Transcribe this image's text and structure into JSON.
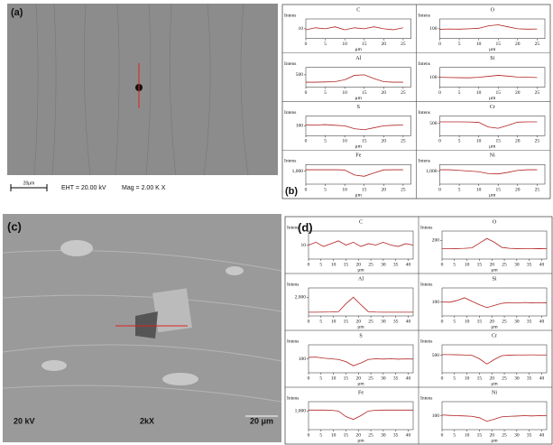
{
  "panels": {
    "a": {
      "label": "(a)",
      "eht": "EHT = 20.00 kV",
      "mag": "Mag =  2.00 K X",
      "scale": "20μm"
    },
    "b": {
      "label": "(b)"
    },
    "c": {
      "label": "(c)",
      "voltage": "20 kV",
      "mag": "2kX",
      "scale": "20 μm"
    },
    "d": {
      "label": "(d)"
    }
  },
  "chart_data": [
    {
      "type": "line",
      "title": "C",
      "y_label": "Intens",
      "x_label": "μm",
      "x": [
        0,
        2.5,
        5,
        7.5,
        10,
        12.5,
        15,
        17.5,
        20,
        22.5,
        25
      ],
      "values": [
        9,
        11,
        10,
        12,
        9,
        11,
        10,
        12,
        10,
        9,
        11
      ],
      "color": "#b22222",
      "xlim": [
        0,
        27
      ],
      "xticks": [
        0,
        5,
        10,
        15,
        20,
        25
      ],
      "ylim": [
        0,
        20
      ],
      "yticks": [
        10
      ]
    },
    {
      "type": "line",
      "title": "O",
      "y_label": "Intens",
      "x_label": "μm",
      "x": [
        0,
        2.5,
        5,
        7.5,
        10,
        12.5,
        15,
        17.5,
        20,
        22.5,
        25
      ],
      "values": [
        95,
        98,
        96,
        100,
        105,
        130,
        140,
        120,
        100,
        96,
        98
      ],
      "color": "#b22222",
      "xlim": [
        0,
        27
      ],
      "xticks": [
        0,
        5,
        10,
        15,
        20,
        25
      ],
      "ylim": [
        0,
        200
      ],
      "yticks": [
        100
      ]
    },
    {
      "type": "line",
      "title": "Al",
      "y_label": "Intens",
      "x_label": "μm",
      "x": [
        0,
        2.5,
        5,
        7.5,
        10,
        12.5,
        15,
        17.5,
        20,
        22.5,
        25
      ],
      "values": [
        200,
        200,
        210,
        220,
        300,
        480,
        500,
        350,
        220,
        200,
        200
      ],
      "color": "#b22222",
      "xlim": [
        0,
        27
      ],
      "xticks": [
        0,
        5,
        10,
        15,
        20,
        25
      ],
      "ylim": [
        0,
        800
      ],
      "yticks": [
        500
      ]
    },
    {
      "type": "line",
      "title": "Si",
      "y_label": "Intens",
      "x_label": "μm",
      "x": [
        0,
        2.5,
        5,
        7.5,
        10,
        12.5,
        15,
        17.5,
        20,
        22.5,
        25
      ],
      "values": [
        100,
        98,
        96,
        95,
        100,
        110,
        120,
        112,
        102,
        100,
        98
      ],
      "color": "#b22222",
      "xlim": [
        0,
        27
      ],
      "xticks": [
        0,
        5,
        10,
        15,
        20,
        25
      ],
      "ylim": [
        0,
        200
      ],
      "yticks": [
        100
      ]
    },
    {
      "type": "line",
      "title": "S",
      "y_label": "Intens",
      "x_label": "μm",
      "x": [
        0,
        2.5,
        5,
        7.5,
        10,
        12.5,
        15,
        17.5,
        20,
        22.5,
        25
      ],
      "values": [
        110,
        108,
        112,
        105,
        100,
        70,
        60,
        80,
        100,
        105,
        108
      ],
      "color": "#b22222",
      "xlim": [
        0,
        27
      ],
      "xticks": [
        0,
        5,
        10,
        15,
        20,
        25
      ],
      "ylim": [
        0,
        200
      ],
      "yticks": [
        100
      ]
    },
    {
      "type": "line",
      "title": "Cr",
      "y_label": "Intens",
      "x_label": "μm",
      "x": [
        0,
        2.5,
        5,
        7.5,
        10,
        12.5,
        15,
        17.5,
        20,
        22.5,
        25
      ],
      "values": [
        560,
        560,
        560,
        555,
        540,
        350,
        300,
        420,
        550,
        560,
        560
      ],
      "color": "#b22222",
      "xlim": [
        0,
        27
      ],
      "xticks": [
        0,
        5,
        10,
        15,
        20,
        25
      ],
      "ylim": [
        0,
        800
      ],
      "yticks": [
        500
      ]
    },
    {
      "type": "line",
      "title": "Fe",
      "y_label": "Intens",
      "x_label": "μm",
      "x": [
        0,
        2.5,
        5,
        7.5,
        10,
        12.5,
        15,
        17.5,
        20,
        22.5,
        25
      ],
      "values": [
        1100,
        1100,
        1100,
        1100,
        1080,
        700,
        600,
        850,
        1090,
        1100,
        1100
      ],
      "color": "#b22222",
      "xlim": [
        0,
        27
      ],
      "xticks": [
        0,
        5,
        10,
        15,
        20,
        25
      ],
      "ylim": [
        0,
        1500
      ],
      "yticks": [
        {
          "value": 1000,
          "label": "1,000"
        }
      ]
    },
    {
      "type": "line",
      "title": "Ni",
      "y_label": "Intens",
      "x_label": "μm",
      "x": [
        0,
        2.5,
        5,
        7.5,
        10,
        12.5,
        15,
        17.5,
        20,
        22.5,
        25
      ],
      "values": [
        1100,
        1100,
        1050,
        1000,
        950,
        800,
        780,
        900,
        1050,
        1100,
        1100
      ],
      "color": "#b22222",
      "xlim": [
        0,
        27
      ],
      "xticks": [
        0,
        5,
        10,
        15,
        20,
        25
      ],
      "ylim": [
        0,
        1500
      ],
      "yticks": [
        {
          "value": 1000,
          "label": "1,000"
        }
      ]
    },
    {
      "type": "line",
      "title": "C",
      "y_label": "Intens",
      "x_label": "μm",
      "x": [
        0,
        3,
        6,
        9,
        12,
        15,
        18,
        21,
        24,
        27,
        30,
        33,
        36,
        39,
        42
      ],
      "values": [
        10,
        12,
        9,
        11,
        13,
        10,
        12,
        9,
        11,
        10,
        12,
        10,
        9,
        11,
        10
      ],
      "color": "#b22222",
      "xlim": [
        0,
        42
      ],
      "xticks": [
        0,
        5,
        10,
        15,
        20,
        25,
        30,
        35,
        40
      ],
      "ylim": [
        0,
        20
      ],
      "yticks": [
        10
      ]
    },
    {
      "type": "line",
      "title": "O",
      "y_label": "Intens",
      "x_label": "μm",
      "x": [
        0,
        3,
        6,
        9,
        12,
        15,
        18,
        21,
        24,
        27,
        30,
        33,
        36,
        39,
        42
      ],
      "values": [
        110,
        110,
        112,
        115,
        120,
        170,
        220,
        180,
        125,
        115,
        112,
        110,
        110,
        112,
        110
      ],
      "color": "#b22222",
      "xlim": [
        0,
        42
      ],
      "xticks": [
        0,
        5,
        10,
        15,
        20,
        25,
        30,
        35,
        40
      ],
      "ylim": [
        0,
        300
      ],
      "yticks": [
        200
      ]
    },
    {
      "type": "line",
      "title": "Al",
      "y_label": "Intens",
      "x_label": "μm",
      "x": [
        0,
        3,
        6,
        9,
        12,
        15,
        18,
        21,
        24,
        27,
        30,
        33,
        36,
        39,
        42
      ],
      "values": [
        400,
        400,
        410,
        420,
        450,
        1300,
        2000,
        1200,
        450,
        410,
        400,
        400,
        400,
        400,
        400
      ],
      "color": "#b22222",
      "xlim": [
        0,
        42
      ],
      "xticks": [
        0,
        5,
        10,
        15,
        20,
        25,
        30,
        35,
        40
      ],
      "ylim": [
        0,
        3000
      ],
      "yticks": [
        {
          "value": 2000,
          "label": "2,000"
        }
      ]
    },
    {
      "type": "line",
      "title": "Si",
      "y_label": "Intens",
      "x_label": "μm",
      "x": [
        0,
        3,
        6,
        9,
        12,
        15,
        18,
        21,
        24,
        27,
        30,
        33,
        36,
        39,
        42
      ],
      "values": [
        100,
        98,
        110,
        130,
        105,
        80,
        60,
        75,
        90,
        95,
        92,
        96,
        94,
        95,
        93
      ],
      "color": "#b22222",
      "xlim": [
        0,
        42
      ],
      "xticks": [
        0,
        5,
        10,
        15,
        20,
        25,
        30,
        35,
        40
      ],
      "ylim": [
        0,
        200
      ],
      "yticks": [
        100
      ]
    },
    {
      "type": "line",
      "title": "S",
      "y_label": "Intens",
      "x_label": "μm",
      "x": [
        0,
        3,
        6,
        9,
        12,
        15,
        18,
        21,
        24,
        27,
        30,
        33,
        36,
        39,
        42
      ],
      "values": [
        110,
        112,
        105,
        100,
        95,
        80,
        50,
        70,
        95,
        100,
        98,
        100,
        97,
        99,
        98
      ],
      "color": "#b22222",
      "xlim": [
        0,
        42
      ],
      "xticks": [
        0,
        5,
        10,
        15,
        20,
        25,
        30,
        35,
        40
      ],
      "ylim": [
        0,
        200
      ],
      "yticks": [
        100
      ]
    },
    {
      "type": "line",
      "title": "Cr",
      "y_label": "Intens",
      "x_label": "μm",
      "x": [
        0,
        3,
        6,
        9,
        12,
        15,
        18,
        21,
        24,
        27,
        30,
        33,
        36,
        39,
        42
      ],
      "values": [
        520,
        520,
        515,
        510,
        500,
        400,
        250,
        380,
        490,
        505,
        510,
        510,
        512,
        510,
        510
      ],
      "color": "#b22222",
      "xlim": [
        0,
        42
      ],
      "xticks": [
        0,
        5,
        10,
        15,
        20,
        25,
        30,
        35,
        40
      ],
      "ylim": [
        0,
        800
      ],
      "yticks": [
        500
      ]
    },
    {
      "type": "line",
      "title": "Fe",
      "y_label": "Intens",
      "x_label": "μm",
      "x": [
        0,
        3,
        6,
        9,
        12,
        15,
        18,
        21,
        24,
        27,
        30,
        33,
        36,
        39,
        42
      ],
      "values": [
        1050,
        1050,
        1050,
        1040,
        1000,
        700,
        550,
        750,
        1000,
        1040,
        1050,
        1050,
        1050,
        1050,
        1050
      ],
      "color": "#b22222",
      "xlim": [
        0,
        42
      ],
      "xticks": [
        0,
        5,
        10,
        15,
        20,
        25,
        30,
        35,
        40
      ],
      "ylim": [
        0,
        1500
      ],
      "yticks": [
        {
          "value": 1000,
          "label": "1,000"
        }
      ]
    },
    {
      "type": "line",
      "title": "Ni",
      "y_label": "Intens",
      "x_label": "μm",
      "x": [
        0,
        3,
        6,
        9,
        12,
        15,
        18,
        21,
        24,
        27,
        30,
        33,
        36,
        39,
        42
      ],
      "values": [
        105,
        102,
        100,
        98,
        95,
        85,
        60,
        75,
        92,
        95,
        97,
        100,
        98,
        100,
        99
      ],
      "color": "#b22222",
      "xlim": [
        0,
        42
      ],
      "xticks": [
        0,
        5,
        10,
        15,
        20,
        25,
        30,
        35,
        40
      ],
      "ylim": [
        0,
        200
      ],
      "yticks": [
        100
      ]
    }
  ]
}
